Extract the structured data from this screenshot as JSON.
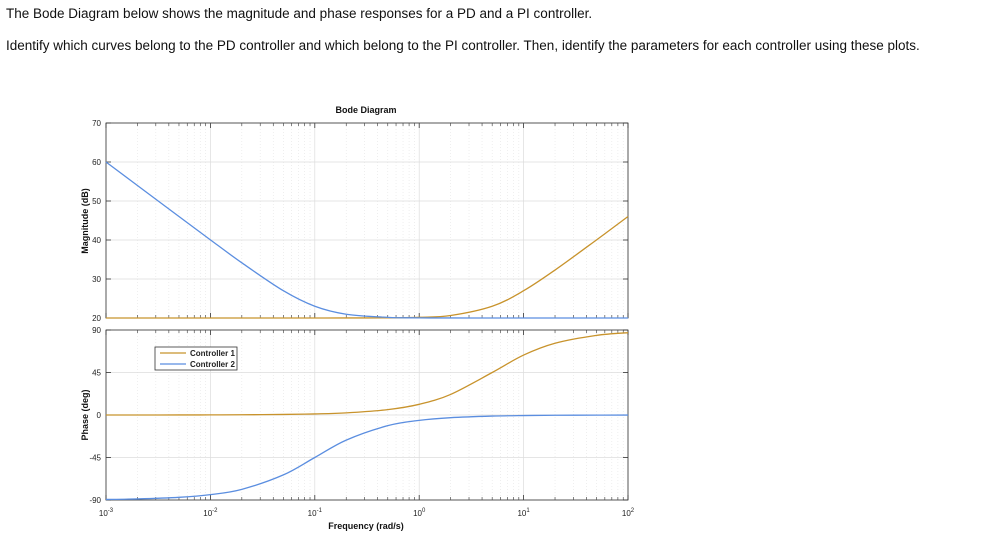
{
  "question": {
    "line1": "The Bode Diagram below shows the magnitude and phase responses for a PD and a PI controller.",
    "line2": "Identify which curves belong to the PD controller and which belong to the PI controller.  Then, identify the parameters for each controller using these plots."
  },
  "chart_data": {
    "type": "line",
    "title": "Bode Diagram",
    "xlabel": "Frequency  (rad/s)",
    "xscale": "log",
    "xlim": [
      0.001,
      100
    ],
    "x_ticks": [
      "10-3",
      "10-2",
      "10-1",
      "100",
      "101",
      "102"
    ],
    "x_tick_labels": [
      {
        "base": "10",
        "exp": "-3"
      },
      {
        "base": "10",
        "exp": "-2"
      },
      {
        "base": "10",
        "exp": "-1"
      },
      {
        "base": "10",
        "exp": "0"
      },
      {
        "base": "10",
        "exp": "1"
      },
      {
        "base": "10",
        "exp": "2"
      }
    ],
    "grid": true,
    "legend": "top-left of phase plot",
    "x": [
      0.001,
      0.002,
      0.005,
      0.01,
      0.02,
      0.05,
      0.1,
      0.2,
      0.5,
      1,
      2,
      5,
      10,
      20,
      50,
      100
    ],
    "magnitude": {
      "ylabel": "Magnitude (dB)",
      "ylim": [
        20,
        70
      ],
      "y_ticks": [
        "70",
        "60",
        "50",
        "40",
        "30",
        "20"
      ]
    },
    "phase": {
      "ylabel": "Phase (deg)",
      "ylim": [
        -90,
        90
      ],
      "y_ticks": [
        "90",
        "45",
        "0",
        "-45",
        "-90"
      ]
    },
    "series": [
      {
        "name": "Controller 1",
        "color": "#c8932c",
        "magnitude": [
          20,
          20,
          20,
          20,
          20,
          20,
          20,
          20.01,
          20.04,
          20.17,
          20.64,
          23.01,
          26.99,
          32.3,
          40.04,
          46.03
        ],
        "phase": [
          0.01,
          0.02,
          0.06,
          0.11,
          0.23,
          0.57,
          1.15,
          2.29,
          5.71,
          11.31,
          21.8,
          45,
          63.43,
          75.96,
          84.29,
          87.14
        ]
      },
      {
        "name": "Controller 2",
        "color": "#5b8ee0",
        "magnitude": [
          60.0,
          53.98,
          46.03,
          40.04,
          34.15,
          26.99,
          23.01,
          20.97,
          20.17,
          20.04,
          20.01,
          20,
          20,
          20,
          20,
          20
        ],
        "phase": [
          -89.43,
          -88.85,
          -87.14,
          -84.29,
          -78.69,
          -63.43,
          -45,
          -26.57,
          -11.31,
          -5.71,
          -2.86,
          -1.15,
          -0.57,
          -0.29,
          -0.11,
          -0.06
        ]
      }
    ]
  }
}
